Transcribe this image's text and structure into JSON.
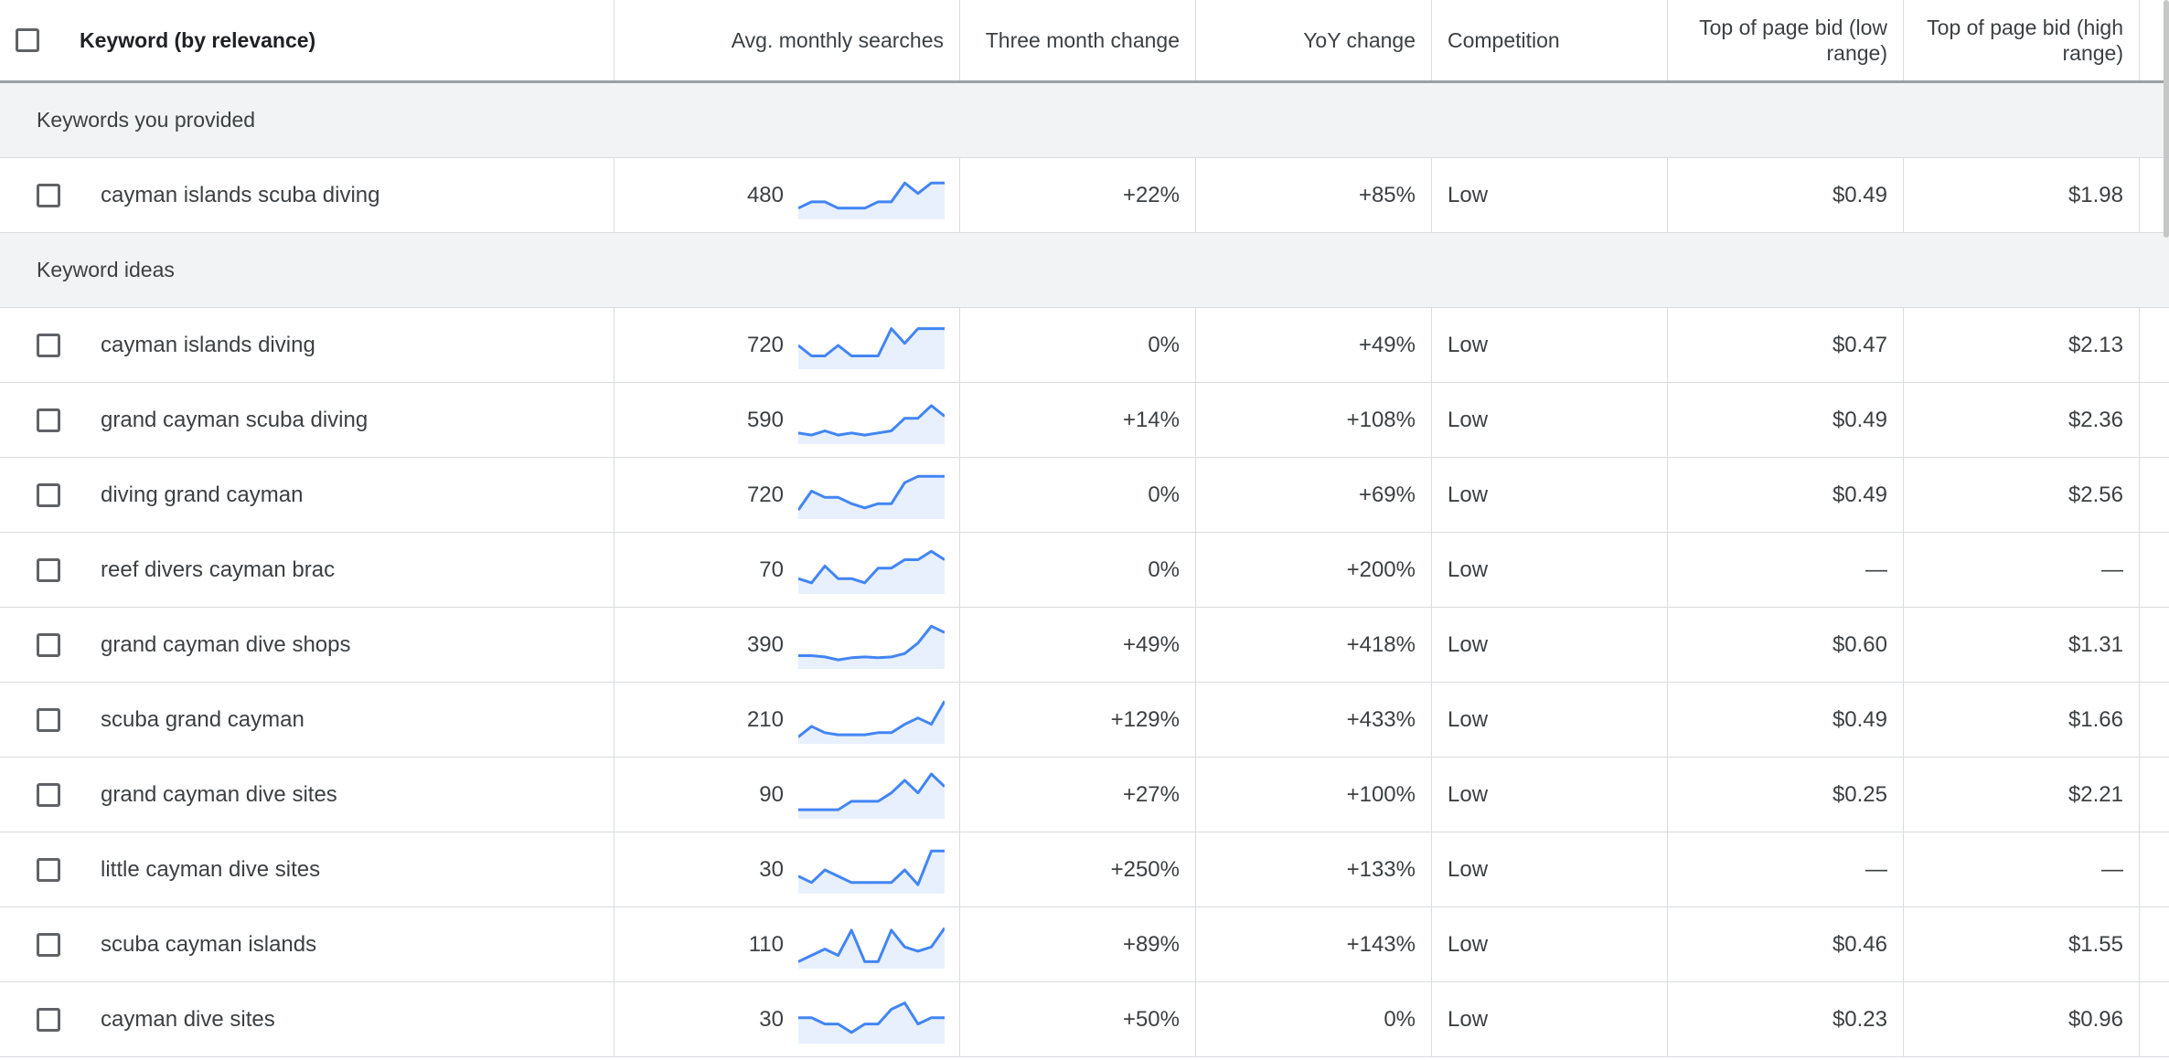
{
  "header": {
    "keyword": "Keyword (by relevance)",
    "avg_monthly_searches": "Avg. monthly searches",
    "three_month_change": "Three month change",
    "yoy_change": "YoY change",
    "competition": "Competition",
    "bid_low": "Top of page bid (low range)",
    "bid_high": "Top of page bid (high range)"
  },
  "groups": [
    {
      "label": "Keywords you provided",
      "rows": [
        {
          "keyword": "cayman islands scuba diving",
          "searches": "480",
          "three_month": "+22%",
          "yoy": "+85%",
          "competition": "Low",
          "bid_low": "$0.49",
          "bid_high": "$1.98",
          "trend": [
            20,
            35,
            35,
            20,
            20,
            20,
            35,
            35,
            80,
            55,
            80,
            80
          ]
        }
      ]
    },
    {
      "label": "Keyword ideas",
      "rows": [
        {
          "keyword": "cayman islands diving",
          "searches": "720",
          "three_month": "0%",
          "yoy": "+49%",
          "competition": "Low",
          "bid_low": "$0.47",
          "bid_high": "$2.13",
          "trend": [
            50,
            25,
            25,
            50,
            25,
            25,
            25,
            90,
            55,
            90,
            90,
            90
          ]
        },
        {
          "keyword": "grand cayman scuba diving",
          "searches": "590",
          "three_month": "+14%",
          "yoy": "+108%",
          "competition": "Low",
          "bid_low": "$0.49",
          "bid_high": "$2.36",
          "trend": [
            20,
            15,
            25,
            15,
            20,
            15,
            20,
            25,
            55,
            55,
            85,
            60
          ]
        },
        {
          "keyword": "diving grand cayman",
          "searches": "720",
          "three_month": "0%",
          "yoy": "+69%",
          "competition": "Low",
          "bid_low": "$0.49",
          "bid_high": "$2.56",
          "trend": [
            15,
            60,
            45,
            45,
            30,
            20,
            30,
            30,
            80,
            95,
            95,
            95
          ]
        },
        {
          "keyword": "reef divers cayman brac",
          "searches": "70",
          "three_month": "0%",
          "yoy": "+200%",
          "competition": "Low",
          "bid_low": "—",
          "bid_high": "—",
          "trend": [
            30,
            20,
            60,
            30,
            30,
            20,
            55,
            55,
            75,
            75,
            95,
            75
          ]
        },
        {
          "keyword": "grand cayman dive shops",
          "searches": "390",
          "three_month": "+49%",
          "yoy": "+418%",
          "competition": "Low",
          "bid_low": "$0.60",
          "bid_high": "$1.31",
          "trend": [
            25,
            25,
            22,
            15,
            20,
            22,
            20,
            22,
            30,
            55,
            95,
            80
          ]
        },
        {
          "keyword": "scuba grand cayman",
          "searches": "210",
          "three_month": "+129%",
          "yoy": "+433%",
          "competition": "Low",
          "bid_low": "$0.49",
          "bid_high": "$1.66",
          "trend": [
            10,
            35,
            20,
            15,
            15,
            15,
            20,
            20,
            40,
            55,
            40,
            95
          ]
        },
        {
          "keyword": "grand cayman dive sites",
          "searches": "90",
          "three_month": "+27%",
          "yoy": "+100%",
          "competition": "Low",
          "bid_low": "$0.25",
          "bid_high": "$2.21",
          "trend": [
            15,
            15,
            15,
            15,
            35,
            35,
            35,
            55,
            85,
            55,
            100,
            70
          ]
        },
        {
          "keyword": "little cayman dive sites",
          "searches": "30",
          "three_month": "+250%",
          "yoy": "+133%",
          "competition": "Low",
          "bid_low": "—",
          "bid_high": "—",
          "trend": [
            35,
            20,
            50,
            35,
            20,
            20,
            20,
            20,
            50,
            15,
            95,
            95
          ]
        },
        {
          "keyword": "scuba cayman islands",
          "searches": "110",
          "three_month": "+89%",
          "yoy": "+143%",
          "competition": "Low",
          "bid_low": "$0.46",
          "bid_high": "$1.55",
          "trend": [
            10,
            25,
            40,
            25,
            85,
            10,
            10,
            85,
            45,
            35,
            45,
            90
          ]
        },
        {
          "keyword": "cayman dive sites",
          "searches": "30",
          "three_month": "+50%",
          "yoy": "0%",
          "competition": "Low",
          "bid_low": "$0.23",
          "bid_high": "$0.96",
          "trend": [
            55,
            55,
            40,
            40,
            20,
            40,
            40,
            75,
            90,
            40,
            55,
            55
          ]
        }
      ]
    }
  ],
  "colors": {
    "sparkline_line": "#4285f4",
    "sparkline_fill": "#e8f0fe",
    "group_background": "#f1f3f4",
    "border": "#dadce0"
  },
  "icons": {
    "checkbox": "checkbox-icon"
  }
}
